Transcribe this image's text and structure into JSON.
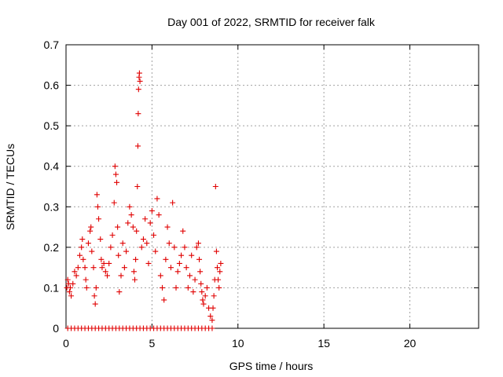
{
  "chart_data": {
    "type": "scatter",
    "title": "Day 001 of 2022, SRMTID for receiver falk",
    "xlabel": "GPS time / hours",
    "ylabel": "SRMTID / TECUs",
    "xlim": [
      0,
      24
    ],
    "ylim": [
      0,
      0.7
    ],
    "x_ticks": [
      0,
      5,
      10,
      15,
      20
    ],
    "x_tick_labels": [
      "0",
      "5",
      "10",
      "15",
      "20"
    ],
    "y_ticks": [
      0,
      0.1,
      0.2,
      0.3,
      0.4,
      0.5,
      0.6,
      0.7
    ],
    "y_tick_labels": [
      "0",
      "0.1",
      "0.2",
      "0.3",
      "0.4",
      "0.5",
      "0.6",
      "0.7"
    ],
    "grid": true,
    "marker": "+",
    "series": [
      {
        "name": "SRMTID",
        "color": "#e00000",
        "points": [
          [
            0.05,
            0.1
          ],
          [
            0.1,
            0.12
          ],
          [
            0.15,
            0.11
          ],
          [
            0.2,
            0.09
          ],
          [
            0.25,
            0.1
          ],
          [
            0.3,
            0.08
          ],
          [
            0.4,
            0.11
          ],
          [
            0.5,
            0.14
          ],
          [
            0.6,
            0.13
          ],
          [
            0.7,
            0.15
          ],
          [
            0.8,
            0.18
          ],
          [
            0.9,
            0.2
          ],
          [
            0.95,
            0.22
          ],
          [
            1.0,
            0.17
          ],
          [
            1.1,
            0.15
          ],
          [
            1.15,
            0.12
          ],
          [
            1.2,
            0.1
          ],
          [
            1.3,
            0.21
          ],
          [
            1.4,
            0.24
          ],
          [
            1.45,
            0.25
          ],
          [
            1.5,
            0.19
          ],
          [
            1.6,
            0.15
          ],
          [
            1.65,
            0.08
          ],
          [
            1.7,
            0.06
          ],
          [
            1.75,
            0.1
          ],
          [
            1.8,
            0.33
          ],
          [
            1.85,
            0.3
          ],
          [
            1.9,
            0.27
          ],
          [
            2.0,
            0.22
          ],
          [
            2.05,
            0.17
          ],
          [
            2.1,
            0.15
          ],
          [
            2.2,
            0.16
          ],
          [
            2.3,
            0.14
          ],
          [
            2.4,
            0.13
          ],
          [
            2.5,
            0.16
          ],
          [
            2.6,
            0.2
          ],
          [
            2.7,
            0.23
          ],
          [
            2.8,
            0.31
          ],
          [
            2.85,
            0.4
          ],
          [
            2.9,
            0.38
          ],
          [
            2.95,
            0.36
          ],
          [
            3.0,
            0.25
          ],
          [
            3.05,
            0.18
          ],
          [
            3.1,
            0.09
          ],
          [
            3.2,
            0.13
          ],
          [
            3.3,
            0.21
          ],
          [
            3.4,
            0.15
          ],
          [
            3.5,
            0.19
          ],
          [
            3.6,
            0.26
          ],
          [
            3.7,
            0.3
          ],
          [
            3.8,
            0.28
          ],
          [
            3.9,
            0.25
          ],
          [
            3.95,
            0.14
          ],
          [
            4.0,
            0.12
          ],
          [
            4.05,
            0.17
          ],
          [
            4.1,
            0.24
          ],
          [
            4.15,
            0.35
          ],
          [
            4.18,
            0.45
          ],
          [
            4.2,
            0.53
          ],
          [
            4.22,
            0.59
          ],
          [
            4.25,
            0.62
          ],
          [
            4.27,
            0.63
          ],
          [
            4.3,
            0.61
          ],
          [
            4.4,
            0.2
          ],
          [
            4.5,
            0.22
          ],
          [
            4.6,
            0.27
          ],
          [
            4.7,
            0.21
          ],
          [
            4.8,
            0.16
          ],
          [
            4.9,
            0.26
          ],
          [
            5.0,
            0.29
          ],
          [
            5.1,
            0.23
          ],
          [
            5.2,
            0.19
          ],
          [
            5.3,
            0.32
          ],
          [
            5.4,
            0.28
          ],
          [
            5.5,
            0.13
          ],
          [
            5.6,
            0.1
          ],
          [
            5.7,
            0.07
          ],
          [
            5.8,
            0.17
          ],
          [
            5.9,
            0.25
          ],
          [
            6.0,
            0.21
          ],
          [
            6.1,
            0.15
          ],
          [
            6.2,
            0.31
          ],
          [
            6.3,
            0.2
          ],
          [
            6.4,
            0.1
          ],
          [
            6.5,
            0.14
          ],
          [
            6.6,
            0.16
          ],
          [
            6.7,
            0.18
          ],
          [
            6.8,
            0.24
          ],
          [
            6.9,
            0.2
          ],
          [
            7.0,
            0.15
          ],
          [
            7.1,
            0.1
          ],
          [
            7.2,
            0.13
          ],
          [
            7.3,
            0.18
          ],
          [
            7.4,
            0.09
          ],
          [
            7.5,
            0.12
          ],
          [
            7.6,
            0.2
          ],
          [
            7.7,
            0.21
          ],
          [
            7.75,
            0.17
          ],
          [
            7.8,
            0.14
          ],
          [
            7.85,
            0.11
          ],
          [
            7.9,
            0.09
          ],
          [
            7.95,
            0.07
          ],
          [
            8.0,
            0.06
          ],
          [
            8.1,
            0.08
          ],
          [
            8.2,
            0.1
          ],
          [
            8.3,
            0.05
          ],
          [
            8.4,
            0.03
          ],
          [
            8.5,
            0.02
          ],
          [
            8.55,
            0.05
          ],
          [
            8.6,
            0.08
          ],
          [
            8.65,
            0.12
          ],
          [
            8.7,
            0.35
          ],
          [
            8.75,
            0.19
          ],
          [
            8.8,
            0.15
          ],
          [
            8.85,
            0.12
          ],
          [
            8.9,
            0.1
          ],
          [
            8.95,
            0.14
          ],
          [
            9.0,
            0.16
          ],
          [
            0.1,
            0.0
          ],
          [
            0.3,
            0.0
          ],
          [
            0.5,
            0.0
          ],
          [
            0.7,
            0.0
          ],
          [
            0.9,
            0.0
          ],
          [
            1.1,
            0.0
          ],
          [
            1.3,
            0.0
          ],
          [
            1.5,
            0.0
          ],
          [
            1.7,
            0.0
          ],
          [
            1.9,
            0.0
          ],
          [
            2.1,
            0.0
          ],
          [
            2.3,
            0.0
          ],
          [
            2.5,
            0.0
          ],
          [
            2.7,
            0.0
          ],
          [
            2.9,
            0.0
          ],
          [
            3.1,
            0.0
          ],
          [
            3.3,
            0.0
          ],
          [
            3.5,
            0.0
          ],
          [
            3.7,
            0.0
          ],
          [
            3.9,
            0.0
          ],
          [
            4.1,
            0.0
          ],
          [
            4.3,
            0.0
          ],
          [
            4.5,
            0.0
          ],
          [
            4.7,
            0.0
          ],
          [
            4.9,
            0.0
          ],
          [
            5.1,
            0.0
          ],
          [
            5.3,
            0.0
          ],
          [
            5.5,
            0.0
          ],
          [
            5.7,
            0.0
          ],
          [
            5.9,
            0.0
          ],
          [
            6.1,
            0.0
          ],
          [
            6.3,
            0.0
          ],
          [
            6.5,
            0.0
          ],
          [
            6.7,
            0.0
          ],
          [
            6.9,
            0.0
          ],
          [
            7.1,
            0.0
          ],
          [
            7.3,
            0.0
          ],
          [
            7.5,
            0.0
          ],
          [
            7.7,
            0.0
          ],
          [
            7.9,
            0.0
          ],
          [
            8.1,
            0.0
          ],
          [
            8.3,
            0.0
          ],
          [
            8.5,
            0.0
          ]
        ]
      }
    ]
  }
}
